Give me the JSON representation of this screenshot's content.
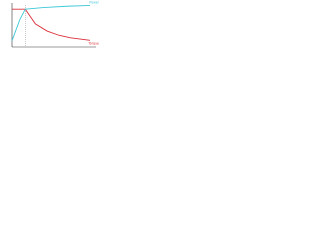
{
  "chart_data": {
    "type": "line",
    "xlim": [
      0,
      100
    ],
    "ylim": [
      0,
      100
    ],
    "marker_x": 17,
    "series": [
      {
        "name": "Torque",
        "color": "#d9303a",
        "x": [
          0,
          17,
          30,
          45,
          60,
          75,
          100
        ],
        "values": [
          90,
          90,
          55,
          38,
          28,
          22,
          16
        ]
      },
      {
        "name": "Power",
        "color": "#3ec8d8",
        "x": [
          0,
          5,
          10,
          17,
          40,
          70,
          100
        ],
        "values": [
          15,
          40,
          65,
          90,
          94,
          97,
          99
        ]
      }
    ]
  }
}
